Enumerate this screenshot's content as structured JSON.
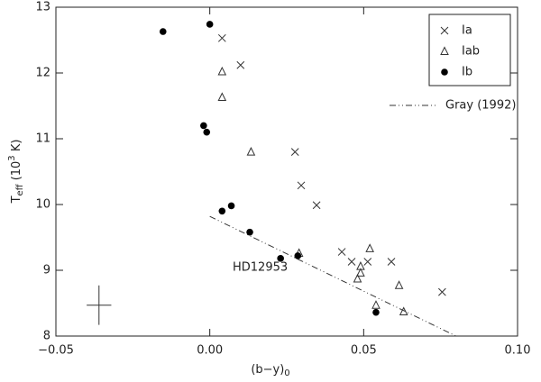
{
  "chart_data": {
    "type": "scatter",
    "xlabel_parts": [
      "(b−y)",
      "0"
    ],
    "ylabel_parts": [
      "T",
      "eff",
      "  (10",
      "3",
      " K)"
    ],
    "xlim": [
      -0.05,
      0.1
    ],
    "ylim": [
      8,
      13
    ],
    "xticks": [
      {
        "value": -0.05,
        "label": "−0.05"
      },
      {
        "value": 0,
        "label": "0.00"
      },
      {
        "value": 0.05,
        "label": "0.05"
      },
      {
        "value": 0.1,
        "label": "0.10"
      }
    ],
    "yticks": [
      8,
      9,
      10,
      11,
      12,
      13
    ],
    "legend": "upper right",
    "series": [
      {
        "name": "Ia",
        "marker": "x",
        "color": "#333333",
        "x": [
          0.004,
          0.01,
          0.0277,
          0.0297,
          0.0347,
          0.0429,
          0.0461,
          0.0513,
          0.059,
          0.0755
        ],
        "y": [
          12.53,
          12.12,
          10.8,
          10.29,
          9.99,
          9.28,
          9.13,
          9.13,
          9.13,
          8.67
        ]
      },
      {
        "name": "Iab",
        "marker": "triangle",
        "color": "#333333",
        "x": [
          0.004,
          0.004,
          0.0134,
          0.029,
          0.052,
          0.049,
          0.049,
          0.048,
          0.0615,
          0.054,
          0.063
        ],
        "y": [
          12.02,
          11.63,
          10.8,
          9.26,
          9.33,
          9.06,
          8.96,
          8.87,
          8.77,
          8.47,
          8.37
        ]
      },
      {
        "name": "Ib",
        "marker": "circle",
        "color": "#000000",
        "x": [
          -0.0152,
          0.0,
          -0.002,
          -0.001,
          0.007,
          0.004,
          0.013,
          0.023,
          0.0286,
          0.054
        ],
        "y": [
          12.63,
          12.74,
          11.2,
          11.1,
          9.98,
          9.9,
          9.58,
          9.18,
          9.22,
          8.36
        ]
      }
    ],
    "reference_line": {
      "name": "Gray (1992)",
      "color": "#333333",
      "x": [
        0.0,
        0.08
      ],
      "y": [
        9.82,
        8.0
      ]
    },
    "error_bar": {
      "x": -0.036,
      "y": 8.47,
      "xerr": 0.004,
      "yerr": 0.3
    },
    "annotations": [
      "HD12953"
    ]
  }
}
